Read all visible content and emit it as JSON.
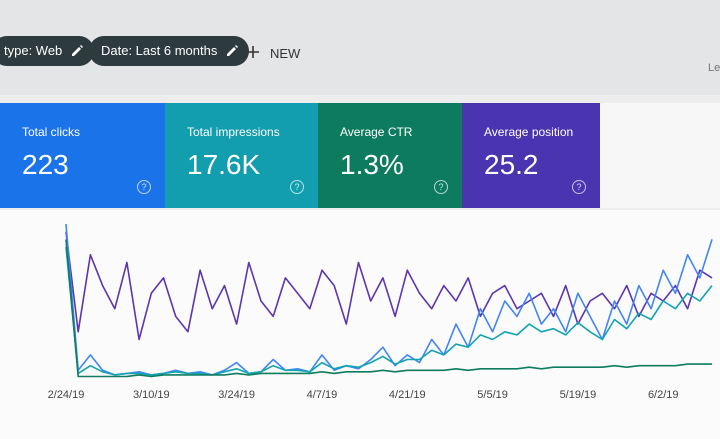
{
  "toolbar": {
    "filters": [
      "type: Web",
      "Date: Last 6 months"
    ],
    "new_button": "NEW",
    "right_text": "Le"
  },
  "metrics": [
    {
      "label": "Total clicks",
      "value": "223",
      "color": "#1a73e8"
    },
    {
      "label": "Total impressions",
      "value": "17.6K",
      "color": "#129eaf"
    },
    {
      "label": "Average CTR",
      "value": "1.3%",
      "color": "#0d7c5e"
    },
    {
      "label": "Average position",
      "value": "25.2",
      "color": "#4a34b0"
    }
  ],
  "help": "?",
  "chart_data": {
    "type": "line",
    "categories": [
      "2/24/19",
      null,
      null,
      null,
      null,
      null,
      null,
      "3/10/19",
      null,
      null,
      null,
      null,
      null,
      null,
      "3/24/19",
      null,
      null,
      null,
      null,
      null,
      null,
      "4/7/19",
      null,
      null,
      null,
      null,
      null,
      null,
      "4/21/19",
      null,
      null,
      null,
      null,
      null,
      null,
      "5/5/19",
      null,
      null,
      null,
      null,
      null,
      null,
      "5/19/19",
      null,
      null,
      null,
      null,
      null,
      null,
      "6/2/19",
      null,
      null,
      null,
      null
    ],
    "series": [
      {
        "color": "#5e35b1",
        "values": [
          95,
          30,
          80,
          60,
          45,
          75,
          25,
          55,
          65,
          40,
          30,
          70,
          45,
          60,
          35,
          75,
          50,
          40,
          65,
          55,
          45,
          70,
          60,
          35,
          75,
          50,
          65,
          40,
          70,
          55,
          45,
          60,
          50,
          65,
          40,
          55,
          60,
          45,
          50,
          55,
          40,
          60,
          35,
          50,
          55,
          45,
          60,
          40,
          55,
          50,
          60,
          45,
          70,
          65
        ]
      },
      {
        "color": "#4285f4",
        "values": [
          100,
          5,
          15,
          5,
          2,
          3,
          4,
          2,
          3,
          5,
          3,
          4,
          2,
          5,
          10,
          3,
          4,
          12,
          5,
          6,
          4,
          15,
          5,
          8,
          6,
          12,
          20,
          8,
          15,
          10,
          25,
          15,
          35,
          20,
          45,
          30,
          50,
          40,
          55,
          35,
          45,
          30,
          55,
          40,
          25,
          50,
          35,
          60,
          45,
          70,
          55,
          80,
          65,
          90
        ]
      },
      {
        "color": "#12a4af",
        "values": [
          85,
          3,
          8,
          4,
          2,
          3,
          3,
          2,
          3,
          4,
          3,
          3,
          2,
          4,
          6,
          3,
          4,
          8,
          5,
          5,
          4,
          10,
          6,
          8,
          7,
          10,
          14,
          9,
          12,
          12,
          18,
          15,
          22,
          20,
          28,
          25,
          30,
          28,
          35,
          30,
          32,
          28,
          36,
          30,
          25,
          38,
          32,
          42,
          38,
          50,
          45,
          55,
          50,
          60
        ]
      },
      {
        "color": "#0e7c5f",
        "values": [
          90,
          1,
          1,
          1,
          1,
          1,
          2,
          1,
          2,
          2,
          2,
          2,
          2,
          2,
          3,
          2,
          3,
          3,
          3,
          3,
          3,
          4,
          3,
          4,
          4,
          4,
          5,
          4,
          5,
          5,
          5,
          5,
          6,
          5,
          6,
          6,
          6,
          6,
          7,
          6,
          7,
          7,
          7,
          7,
          7,
          8,
          7,
          8,
          8,
          8,
          8,
          9,
          9,
          9
        ]
      }
    ]
  }
}
